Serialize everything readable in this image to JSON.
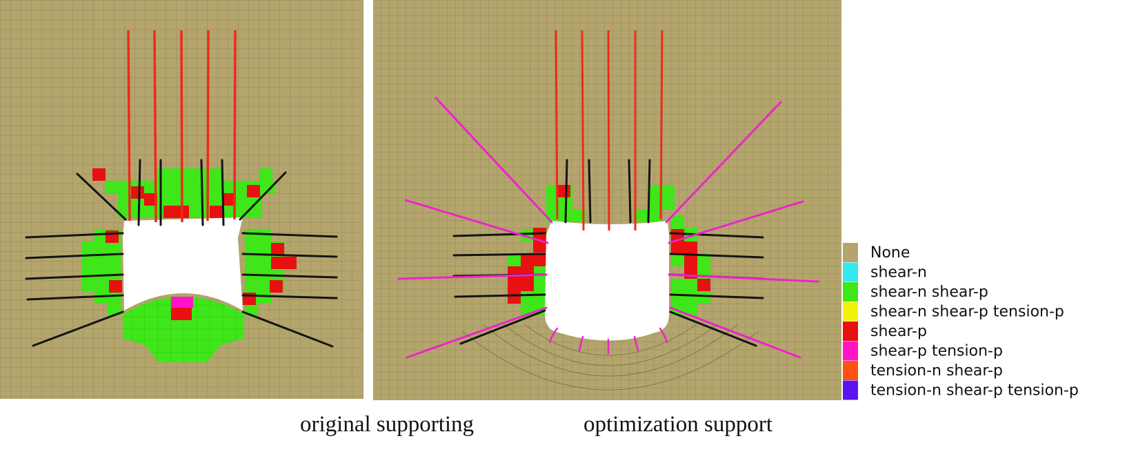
{
  "figure": {
    "panels": [
      {
        "id": "original",
        "caption": "original supporting"
      },
      {
        "id": "optimized",
        "caption": "optimization support"
      }
    ],
    "legend": [
      {
        "label": "None",
        "color": "#b3a56c"
      },
      {
        "label": "shear-n",
        "color": "#35e8f0"
      },
      {
        "label": "shear-n shear-p",
        "color": "#3ee61a"
      },
      {
        "label": "shear-n shear-p tension-p",
        "color": "#f2f20a"
      },
      {
        "label": "shear-p",
        "color": "#e81010"
      },
      {
        "label": "shear-p tension-p",
        "color": "#ff14c8"
      },
      {
        "label": "tension-n shear-p",
        "color": "#ff5014"
      },
      {
        "label": "tension-n shear-p tension-p",
        "color": "#5a14f0"
      }
    ],
    "colors": {
      "rock": "#b3a56c",
      "mesh_line": "#7d7350",
      "red_cable": "#ee2a1a",
      "black_bolt": "#141414",
      "pink_bolt": "#ee22cc",
      "cavity": "#ffffff"
    }
  }
}
